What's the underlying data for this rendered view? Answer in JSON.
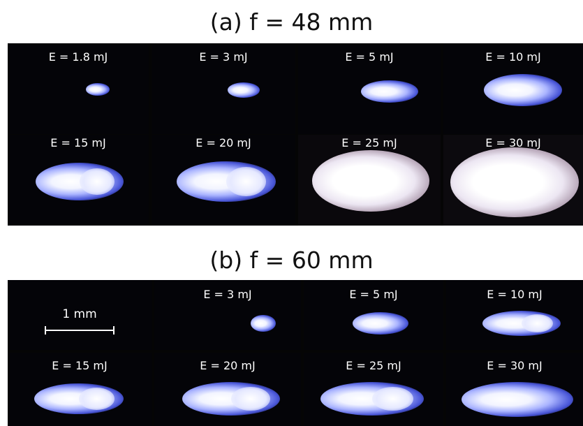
{
  "panel_a": {
    "title": "(a) f = 48 mm",
    "cells": [
      {
        "label": "E = 1.8 mJ"
      },
      {
        "label": "E = 3 mJ"
      },
      {
        "label": "E = 5 mJ"
      },
      {
        "label": "E = 10 mJ"
      },
      {
        "label": "E = 15 mJ"
      },
      {
        "label": "E = 20 mJ"
      },
      {
        "label": "E = 25 mJ"
      },
      {
        "label": "E = 30 mJ"
      }
    ]
  },
  "panel_b": {
    "title": "(b) f = 60 mm",
    "scale_bar_label": "1 mm",
    "cells": [
      {
        "label": ""
      },
      {
        "label": "E = 3 mJ"
      },
      {
        "label": "E = 5 mJ"
      },
      {
        "label": "E = 10 mJ"
      },
      {
        "label": "E = 15 mJ"
      },
      {
        "label": "E = 20 mJ"
      },
      {
        "label": "E = 25 mJ"
      },
      {
        "label": "E = 30 mJ"
      }
    ]
  },
  "colors": {
    "background": "#ffffff",
    "image_background": "#050505",
    "plume_core": "#ffffff",
    "plume_halo": "#4a57d8"
  }
}
